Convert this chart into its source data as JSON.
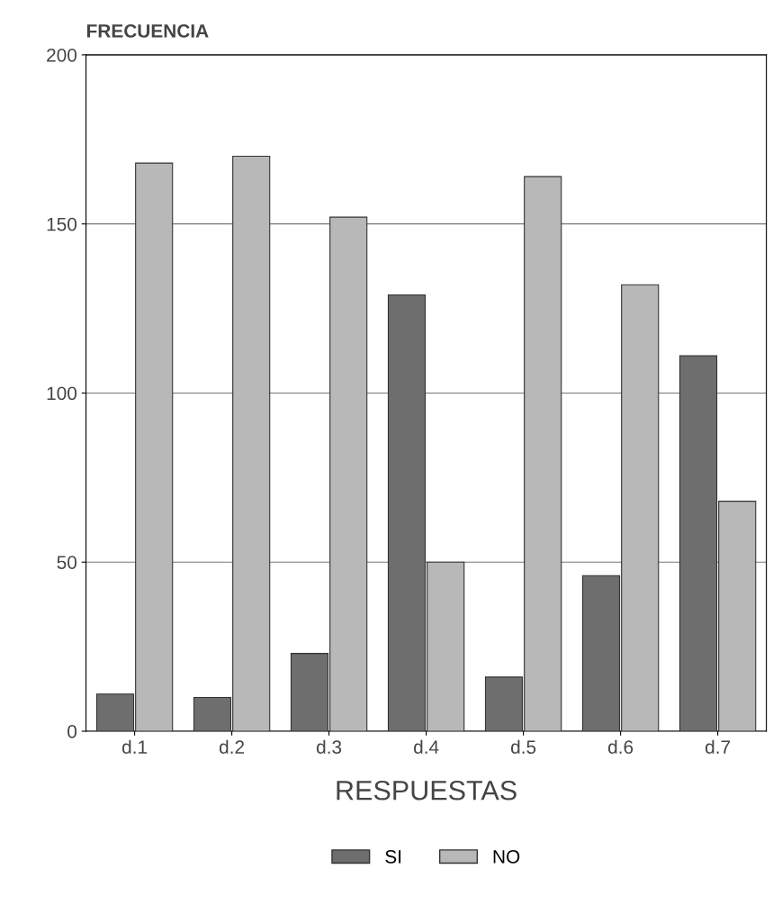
{
  "chart_data": {
    "type": "bar",
    "xlabel": "RESPUESTAS",
    "ylabel": "FRECUENCIA",
    "categories": [
      "d.1",
      "d.2",
      "d.3",
      "d.4",
      "d.5",
      "d.6",
      "d.7"
    ],
    "series": [
      {
        "name": "SI",
        "color": "#6e6e6e",
        "values": [
          11,
          10,
          23,
          129,
          16,
          46,
          111
        ]
      },
      {
        "name": "NO",
        "color": "#b8b8b8",
        "values": [
          168,
          170,
          152,
          50,
          164,
          132,
          68
        ]
      }
    ],
    "ylim": [
      0,
      200
    ],
    "yticks": [
      0,
      50,
      100,
      150,
      200
    ],
    "grid": "y",
    "legend": "bottom"
  }
}
